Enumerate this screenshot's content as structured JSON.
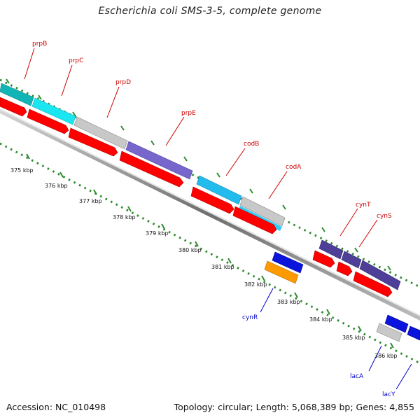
{
  "title": "Escherichia coli SMS-3-5, complete genome",
  "footer": {
    "accession": "Accession: NC_010498",
    "summary": "Topology: circular; Length: 5,068,389 bp; Genes: 4,855"
  },
  "scale_labels": [
    "375 kbp",
    "376 kbp",
    "377 kbp",
    "378 kbp",
    "379 kbp",
    "380 kbp",
    "381 kbp",
    "382 kbp",
    "383 kbp",
    "384 kbp",
    "385 kbp",
    "386 kbp"
  ],
  "genes_forward": [
    "prpB",
    "prpC",
    "prpD",
    "prpE",
    "codB",
    "codA",
    "cynT",
    "cynS"
  ],
  "genes_reverse": [
    "cynR",
    "lacA",
    "lacY"
  ],
  "colors": {
    "label_forward": "#cc0000",
    "label_reverse": "#0000cc",
    "cds": "#ff0000",
    "tick": "#2e8b2e",
    "backbone": "#777777"
  }
}
